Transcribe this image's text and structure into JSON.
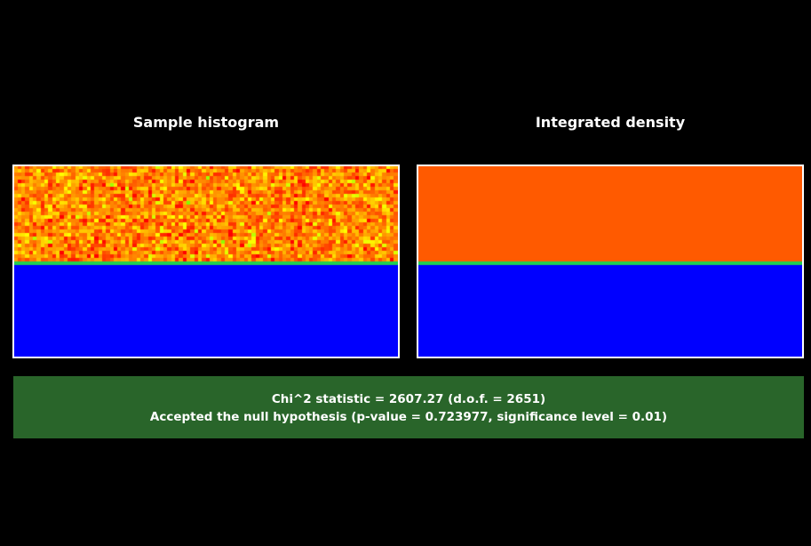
{
  "panels": [
    {
      "title": "Sample histogram"
    },
    {
      "title": "Integrated density"
    }
  ],
  "result": {
    "statistic_line": "Chi^2 statistic = 2607.27 (d.o.f. = 2651)",
    "hypothesis_line": "Accepted the null hypothesis (p-value = 0.723977, significance level = 0.01)"
  },
  "chart_data": [
    {
      "type": "heatmap",
      "title": "Sample histogram",
      "rows": 54,
      "cols": 100,
      "colormap": [
        "#0000ff",
        "#00ff00",
        "#ffff00",
        "#ff0000"
      ],
      "regions": [
        {
          "name": "",
          "row_fraction": [
            0,
            0.5
          ],
          "value_mean": 0.82,
          "value_noise": 0.08
        },
        {
          "name": "",
          "row_fraction": [
            0.5,
            0.52
          ],
          "value_mean": 0.33,
          "value_noise": 0
        },
        {
          "name": "",
          "row_fraction": [
            0.52,
            1
          ],
          "value_mean": 0.0,
          "value_noise": 0
        }
      ],
      "colors": {
        "high": "#ff5a00",
        "boundary": "#20d050",
        "low": "#0000ff"
      }
    },
    {
      "type": "heatmap",
      "title": "Integrated density",
      "rows": 54,
      "cols": 100,
      "colormap": [
        "#0000ff",
        "#00ff00",
        "#ffff00",
        "#ff0000"
      ],
      "regions": [
        {
          "name": "",
          "row_fraction": [
            0,
            0.5
          ],
          "value_mean": 0.82,
          "value_noise": 0
        },
        {
          "name": "",
          "row_fraction": [
            0.5,
            0.52
          ],
          "value_mean": 0.33,
          "value_noise": 0
        },
        {
          "name": "",
          "row_fraction": [
            0.52,
            1
          ],
          "value_mean": 0.0,
          "value_noise": 0
        }
      ],
      "colors": {
        "high": "#ff5a00",
        "boundary": "#20d050",
        "low": "#0000ff"
      }
    }
  ],
  "colors": {
    "background": "#000000",
    "result_box": "#29652a",
    "border": "#ffffff"
  }
}
